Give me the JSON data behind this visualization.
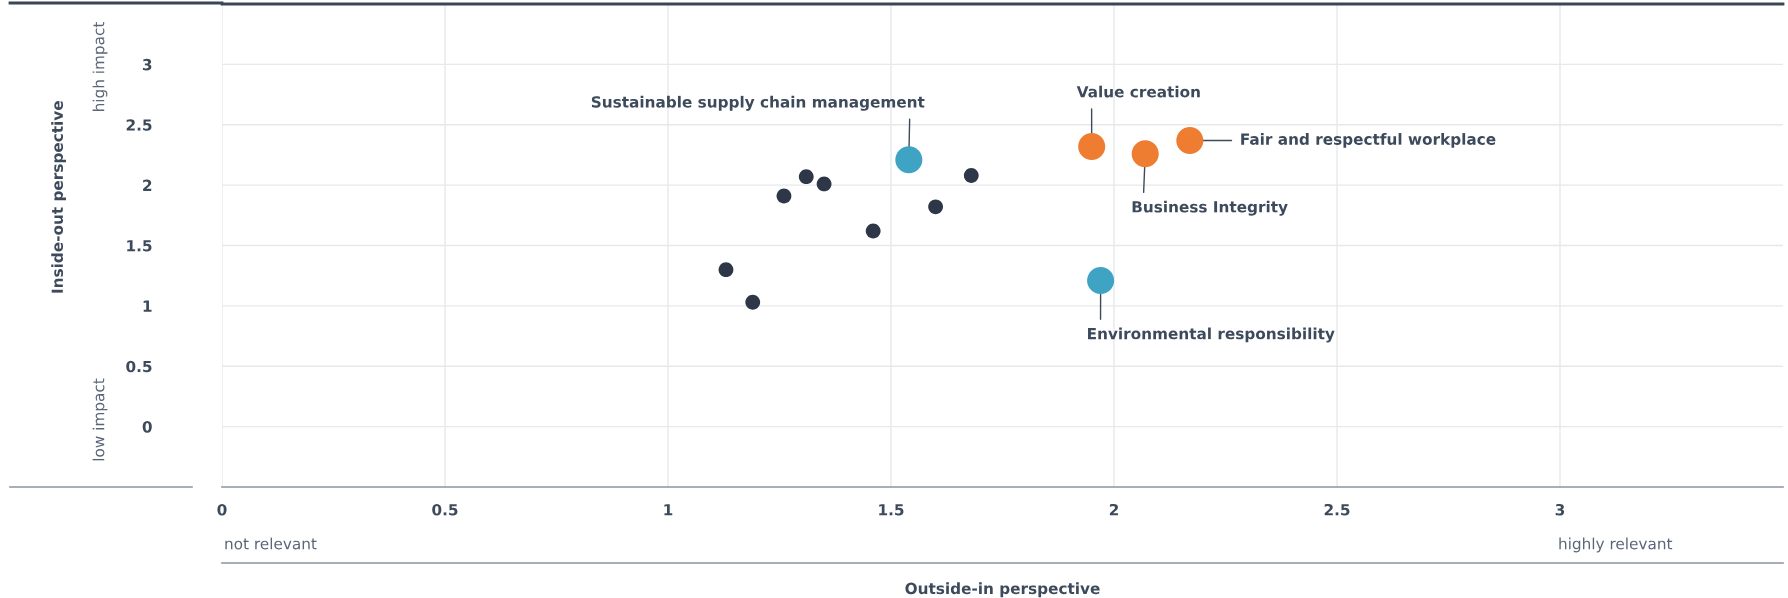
{
  "chart_data": {
    "type": "bubble",
    "xlabel": "Outside-in perspective",
    "ylabel": "Inside-out perspective",
    "xlim": [
      0,
      3.5
    ],
    "ylim": [
      -0.5,
      3.5
    ],
    "xticks": [
      0,
      0.5,
      1,
      1.5,
      2,
      2.5,
      3
    ],
    "yticks": [
      0,
      0.5,
      1,
      1.5,
      2,
      2.5,
      3
    ],
    "grid": true,
    "series": [
      {
        "color": "#2d3748",
        "x": [
          1.13,
          1.19,
          1.26,
          1.31,
          1.35,
          1.46,
          1.6,
          1.68
        ],
        "values": [
          1.3,
          1.03,
          1.91,
          2.07,
          2.01,
          1.62,
          1.82,
          2.08
        ],
        "sizes": [
          0.3,
          0.3,
          0.3,
          0.3,
          0.3,
          0.3,
          0.3,
          0.3
        ]
      },
      {
        "color": "#3fa4c4",
        "x": [
          1.54,
          1.97
        ],
        "values": [
          2.21,
          1.21
        ],
        "sizes": [
          1,
          1
        ]
      },
      {
        "color": "#ee7d31",
        "x": [
          1.95,
          2.07,
          2.17
        ],
        "values": [
          2.32,
          2.26,
          2.37
        ],
        "sizes": [
          1,
          1,
          1
        ]
      }
    ],
    "annotations": [
      {
        "text": "Sustainable supply chain management",
        "x": 1.54,
        "y": 2.21
      },
      {
        "text": "Value creation",
        "x": 1.95,
        "y": 2.32
      },
      {
        "text": "Fair and respectful workplace",
        "x": 2.17,
        "y": 2.37
      },
      {
        "text": "Business Integrity",
        "x": 2.07,
        "y": 2.26
      },
      {
        "text": "Environmental responsibility",
        "x": 1.97,
        "y": 1.21
      },
      "high impact",
      "low impact",
      "not relevant",
      "highly relevant"
    ]
  }
}
